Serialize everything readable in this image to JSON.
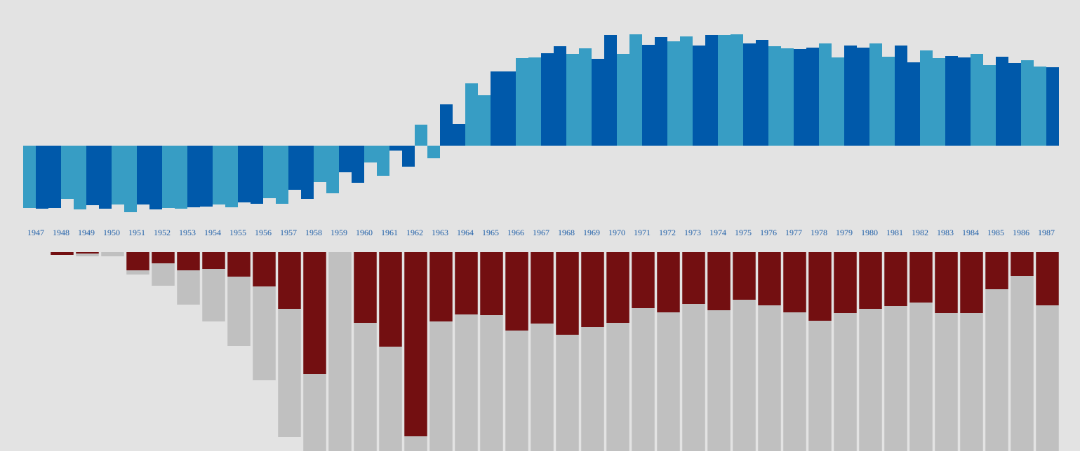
{
  "colors": {
    "background": "#e3e3e3",
    "series_a": "#379dc4",
    "series_b": "#0059aa",
    "lower_red": "#730f11",
    "lower_gray": "#c0c0c0",
    "year_label": "#1f5fa8"
  },
  "chart_data": [
    {
      "type": "bar",
      "grid": false,
      "legend": "none",
      "x": [
        1947,
        1948,
        1949,
        1950,
        1951,
        1952,
        1953,
        1954,
        1955,
        1956,
        1957,
        1958,
        1959,
        1960,
        1961,
        1962,
        1963,
        1964,
        1965,
        1966,
        1967,
        1968,
        1969,
        1970,
        1971,
        1972,
        1973,
        1974,
        1975,
        1976,
        1977,
        1978,
        1979,
        1980,
        1981,
        1982,
        1983,
        1984,
        1985,
        1986,
        1987
      ],
      "x_ticks": [
        "1947",
        "1948",
        "1949",
        "1950",
        "1951",
        "1952",
        "1953",
        "1954",
        "1955",
        "1956",
        "1957",
        "1958",
        "1959",
        "1960",
        "1961",
        "1962",
        "1963",
        "1964",
        "1965",
        "1966",
        "1967",
        "1968",
        "1969",
        "1970",
        "1971",
        "1972",
        "1973",
        "1974",
        "1975",
        "1976",
        "1977",
        "1978",
        "1979",
        "1980",
        "1981",
        "1982",
        "1983",
        "1984",
        "1985",
        "1986",
        "1987"
      ],
      "ylim": [
        -100,
        160
      ],
      "series": [
        {
          "values": [
            -89,
            -89,
            -91,
            -90,
            -95,
            -91,
            -90,
            -87,
            -88,
            -83,
            -83,
            -76,
            -68,
            -53,
            -43,
            -30,
            -18,
            31,
            72,
            106,
            126,
            142,
            139,
            158,
            159,
            155,
            156,
            158,
            159,
            151,
            139,
            140,
            126,
            140,
            127,
            119,
            125,
            126,
            115,
            118,
            113
          ]
        },
        {
          "values": [
            -90,
            -76,
            -85,
            -84,
            -84,
            -89,
            -88,
            -84,
            -81,
            -75,
            -63,
            -52,
            -38,
            -24,
            -7,
            30,
            59,
            89,
            106,
            125,
            132,
            131,
            124,
            131,
            144,
            149,
            143,
            158,
            146,
            142,
            138,
            146,
            143,
            146,
            143,
            136,
            128,
            131,
            127,
            122,
            112
          ]
        }
      ]
    },
    {
      "type": "bar",
      "stacked": true,
      "grid": false,
      "legend": "none",
      "x": [
        1947,
        1948,
        1949,
        1950,
        1951,
        1952,
        1953,
        1954,
        1955,
        1956,
        1957,
        1958,
        1959,
        1960,
        1961,
        1962,
        1963,
        1964,
        1965,
        1966,
        1967,
        1968,
        1969,
        1970,
        1971,
        1972,
        1973,
        1974,
        1975,
        1976,
        1977,
        1978,
        1979,
        1980,
        1981,
        1982,
        1983,
        1984,
        1985,
        1986,
        1987
      ],
      "ylim": [
        0,
        300
      ],
      "series": [
        {
          "values": [
            0,
            4,
            2,
            0,
            26,
            16,
            26,
            24,
            35,
            49,
            81,
            174,
            0,
            101,
            135,
            263,
            99,
            89,
            90,
            112,
            102,
            118,
            107,
            101,
            80,
            86,
            74,
            83,
            68,
            76,
            86,
            98,
            87,
            81,
            77,
            72,
            87,
            87,
            53,
            34,
            76
          ]
        },
        {
          "values": [
            0,
            0,
            4,
            6,
            6,
            32,
            49,
            75,
            99,
            134,
            183,
            126,
            300,
            199,
            165,
            37,
            201,
            211,
            210,
            188,
            198,
            182,
            193,
            199,
            220,
            214,
            226,
            217,
            232,
            224,
            214,
            202,
            213,
            219,
            223,
            228,
            213,
            213,
            247,
            266,
            224
          ]
        }
      ]
    }
  ]
}
